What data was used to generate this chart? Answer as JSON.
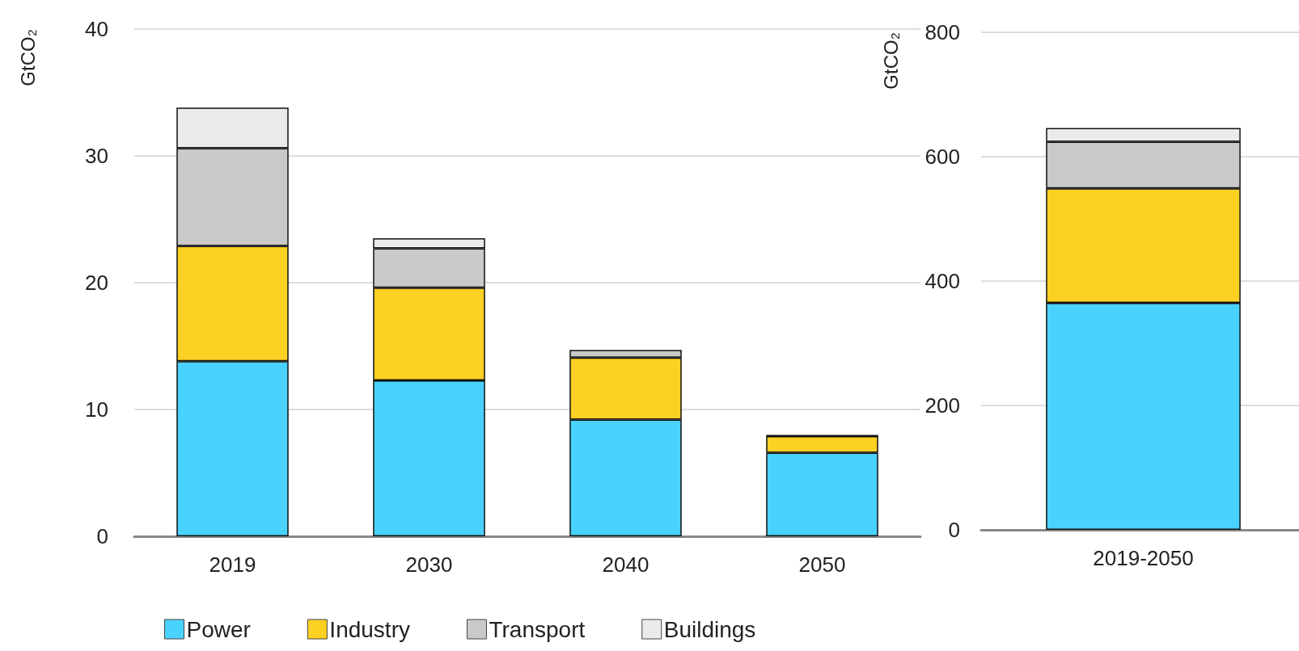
{
  "chart_data": [
    {
      "type": "bar",
      "stacked": true,
      "ylabel": "GtCO₂",
      "categories": [
        "2019",
        "2030",
        "2040",
        "2050"
      ],
      "ylim": [
        0,
        40
      ],
      "yticks": [
        0,
        10,
        20,
        30,
        40
      ],
      "grid": "y",
      "legend": "bottom",
      "series": [
        {
          "name": "Power",
          "color": "#4ad2ff",
          "values": [
            13.8,
            12.3,
            9.2,
            6.6
          ]
        },
        {
          "name": "Industry",
          "color": "#fdd123",
          "values": [
            9.1,
            7.3,
            4.9,
            1.3
          ]
        },
        {
          "name": "Transport",
          "color": "#c9c9c9",
          "values": [
            7.7,
            3.1,
            0.6,
            0.1
          ]
        },
        {
          "name": "Buildings",
          "color": "#ebebeb",
          "values": [
            3.2,
            0.8,
            0,
            0
          ]
        }
      ]
    },
    {
      "type": "bar",
      "stacked": true,
      "ylabel": "GtCO₂",
      "categories": [
        "2019-2050"
      ],
      "ylim": [
        0,
        800
      ],
      "yticks": [
        0,
        200,
        400,
        600,
        800
      ],
      "grid": "y",
      "legend": false,
      "series": [
        {
          "color": "#4ad2ff",
          "values": [
            365
          ]
        },
        {
          "color": "#fdd123",
          "values": [
            184
          ]
        },
        {
          "color": "#c9c9c9",
          "values": [
            75
          ]
        },
        {
          "color": "#ebebeb",
          "values": [
            22
          ]
        }
      ]
    }
  ]
}
